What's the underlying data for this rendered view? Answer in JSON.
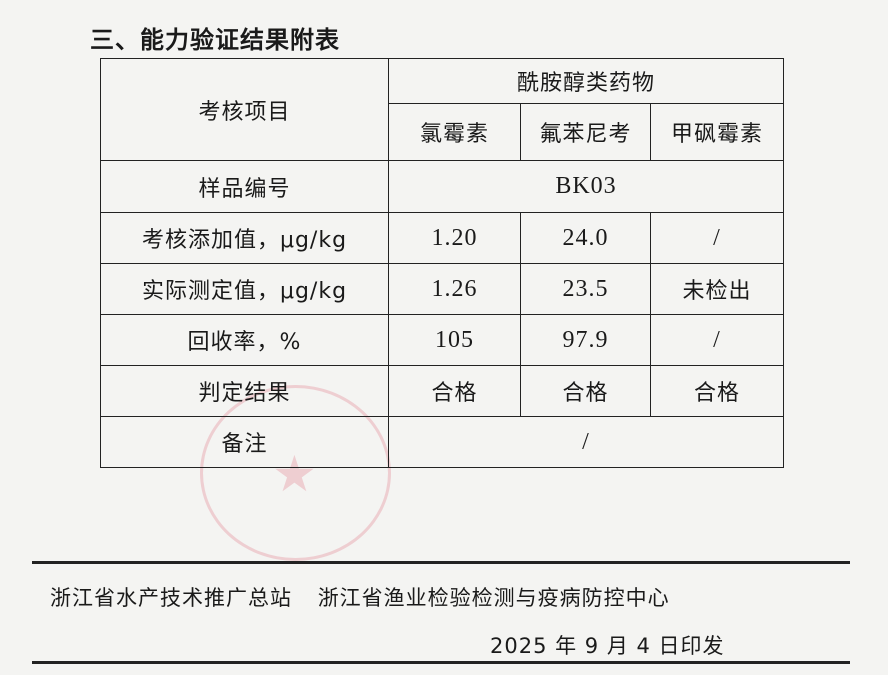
{
  "title": "三、能力验证结果附表",
  "table": {
    "item_header": "考核项目",
    "group_header": "酰胺醇类药物",
    "drugs": [
      "氯霉素",
      "氟苯尼考",
      "甲砜霉素"
    ],
    "sample_label": "样品编号",
    "sample_id": "BK03",
    "rows": [
      {
        "label": "考核添加值，μg/kg",
        "values": [
          "1.20",
          "24.0",
          "/"
        ]
      },
      {
        "label": "实际测定值，μg/kg",
        "values": [
          "1.26",
          "23.5",
          "未检出"
        ]
      },
      {
        "label": "回收率，%",
        "values": [
          "105",
          "97.9",
          "/"
        ]
      },
      {
        "label": "判定结果",
        "values": [
          "合格",
          "合格",
          "合格"
        ]
      }
    ],
    "remark_label": "备注",
    "remark_value": "/"
  },
  "footer": {
    "org1": "浙江省水产技术推广总站",
    "org2": "浙江省渔业检验检测与疫病防控中心",
    "date": "2025 年 9 月 4 日印发"
  }
}
